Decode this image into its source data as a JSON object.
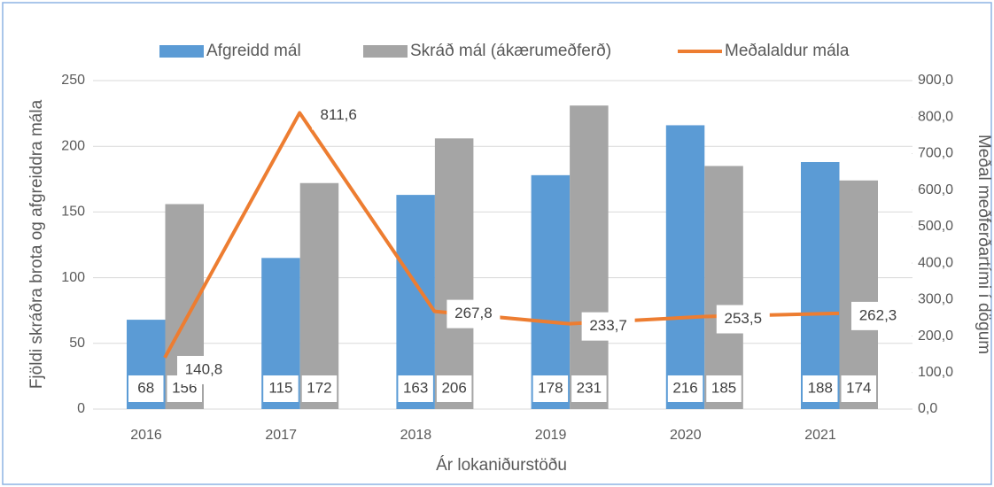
{
  "chart_data": {
    "type": "bar-line",
    "categories": [
      "2016",
      "2017",
      "2018",
      "2019",
      "2020",
      "2021"
    ],
    "x_label": "Ár lokaniðurstöðu",
    "y_label": "Fjöldi skráðra brota og afgreiddra mála",
    "y2_label": "Meðal meðferðartími í dögum",
    "ylim": [
      0,
      250
    ],
    "yticks": [
      0,
      50,
      100,
      150,
      200,
      250
    ],
    "y2lim": [
      0,
      900
    ],
    "y2ticks": [
      {
        "value": 0,
        "label": "0,0"
      },
      {
        "value": 100,
        "label": "100,0"
      },
      {
        "value": 200,
        "label": "200,0"
      },
      {
        "value": 300,
        "label": "300,0"
      },
      {
        "value": 400,
        "label": "400,0"
      },
      {
        "value": 500,
        "label": "500,0"
      },
      {
        "value": 600,
        "label": "600,0"
      },
      {
        "value": 700,
        "label": "700,0"
      },
      {
        "value": 800,
        "label": "800,0"
      },
      {
        "value": 900,
        "label": "900,0"
      }
    ],
    "grid": true,
    "legend": "top",
    "series": [
      {
        "name": "Afgreidd mál",
        "type": "bar",
        "color": "#5b9bd5",
        "values": [
          68,
          115,
          163,
          178,
          216,
          188
        ]
      },
      {
        "name": "Skráð mál (ákærumeðferð)",
        "type": "bar",
        "color": "#a5a5a5",
        "values": [
          156,
          172,
          206,
          231,
          185,
          174
        ]
      },
      {
        "name": "Meðalaldur mála",
        "type": "line",
        "axis": "y2",
        "color": "#ed7d31",
        "values": [
          140.8,
          811.6,
          267.8,
          233.7,
          253.5,
          262.3
        ],
        "value_labels": [
          "140,8",
          "811,6",
          "267,8",
          "233,7",
          "253,5",
          "262,3"
        ]
      }
    ]
  }
}
